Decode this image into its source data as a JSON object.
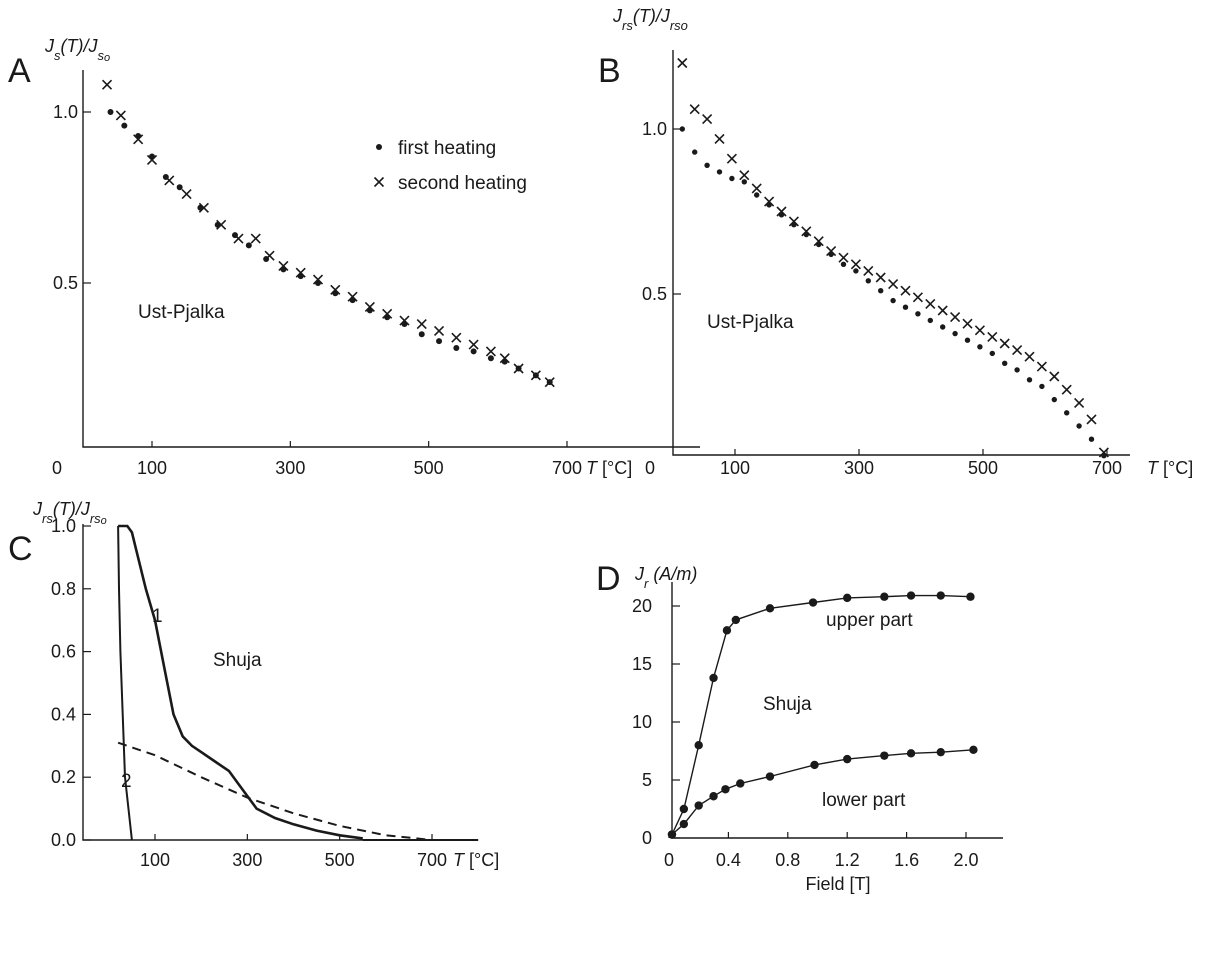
{
  "chart_data": [
    {
      "panel": "A",
      "type": "scatter",
      "ylabel": "J_s(T)/J_so",
      "xlabel": "T [°C]",
      "x_ticks": [
        0,
        100,
        300,
        500,
        700
      ],
      "y_ticks": [
        0.5,
        1.0
      ],
      "xlim": [
        0,
        700
      ],
      "ylim": [
        0,
        1.1
      ],
      "annotations": [
        "Ust-Pjalka"
      ],
      "series": [
        {
          "name": "first heating",
          "marker": "dot",
          "x": [
            40,
            60,
            80,
            100,
            120,
            140,
            170,
            195,
            220,
            240,
            265,
            290,
            315,
            340,
            365,
            390,
            415,
            440,
            465,
            490,
            515,
            540,
            565,
            590,
            610,
            630,
            655,
            675
          ],
          "y": [
            1.0,
            0.96,
            0.93,
            0.87,
            0.81,
            0.78,
            0.72,
            0.67,
            0.64,
            0.61,
            0.57,
            0.54,
            0.52,
            0.5,
            0.47,
            0.45,
            0.42,
            0.4,
            0.38,
            0.35,
            0.33,
            0.31,
            0.3,
            0.28,
            0.27,
            0.25,
            0.23,
            0.21
          ]
        },
        {
          "name": "second heating",
          "marker": "cross",
          "x": [
            35,
            55,
            80,
            100,
            125,
            150,
            175,
            200,
            225,
            250,
            270,
            290,
            315,
            340,
            365,
            390,
            415,
            440,
            465,
            490,
            515,
            540,
            565,
            590,
            610,
            630,
            655,
            675
          ],
          "y": [
            1.08,
            0.99,
            0.92,
            0.86,
            0.8,
            0.76,
            0.72,
            0.67,
            0.63,
            0.63,
            0.58,
            0.55,
            0.53,
            0.51,
            0.48,
            0.46,
            0.43,
            0.41,
            0.39,
            0.38,
            0.36,
            0.34,
            0.32,
            0.3,
            0.28,
            0.25,
            0.23,
            0.21
          ]
        }
      ],
      "legend": [
        "first heating",
        "second heating"
      ]
    },
    {
      "panel": "B",
      "type": "scatter",
      "ylabel": "Jrs(T)/Jrso",
      "xlabel": "T [°C]",
      "x_ticks": [
        0,
        100,
        300,
        500,
        700
      ],
      "y_ticks": [
        0.5,
        1.0
      ],
      "xlim": [
        0,
        700
      ],
      "ylim": [
        0,
        1.2
      ],
      "annotations": [
        "Ust-Pjalka"
      ],
      "series": [
        {
          "name": "first heating",
          "marker": "dot",
          "x": [
            15,
            35,
            55,
            75,
            95,
            115,
            135,
            155,
            175,
            195,
            215,
            235,
            255,
            275,
            295,
            315,
            335,
            355,
            375,
            395,
            415,
            435,
            455,
            475,
            495,
            515,
            535,
            555,
            575,
            595,
            615,
            635,
            655,
            675,
            695
          ],
          "y": [
            1.0,
            0.93,
            0.89,
            0.87,
            0.85,
            0.84,
            0.8,
            0.77,
            0.74,
            0.71,
            0.68,
            0.65,
            0.62,
            0.59,
            0.57,
            0.54,
            0.51,
            0.48,
            0.46,
            0.44,
            0.42,
            0.4,
            0.38,
            0.36,
            0.34,
            0.32,
            0.29,
            0.27,
            0.24,
            0.22,
            0.18,
            0.14,
            0.1,
            0.06,
            0.01
          ]
        },
        {
          "name": "second heating",
          "marker": "cross",
          "x": [
            15,
            35,
            55,
            75,
            95,
            115,
            135,
            155,
            175,
            195,
            215,
            235,
            255,
            275,
            295,
            315,
            335,
            355,
            375,
            395,
            415,
            435,
            455,
            475,
            495,
            515,
            535,
            555,
            575,
            595,
            615,
            635,
            655,
            675,
            695
          ],
          "y": [
            1.2,
            1.06,
            1.03,
            0.97,
            0.91,
            0.86,
            0.82,
            0.78,
            0.75,
            0.72,
            0.69,
            0.66,
            0.63,
            0.61,
            0.59,
            0.57,
            0.55,
            0.53,
            0.51,
            0.49,
            0.47,
            0.45,
            0.43,
            0.41,
            0.39,
            0.37,
            0.35,
            0.33,
            0.31,
            0.28,
            0.25,
            0.21,
            0.17,
            0.12,
            0.02
          ]
        }
      ]
    },
    {
      "panel": "C",
      "type": "line",
      "ylabel": "Jrs(T)/Jrso",
      "xlabel": "T [°C]",
      "x_ticks": [
        100,
        300,
        500,
        700
      ],
      "y_ticks": [
        0.0,
        0.2,
        0.4,
        0.6,
        0.8,
        1.0
      ],
      "xlim": [
        20,
        800
      ],
      "ylim": [
        0,
        1.0
      ],
      "annotations": [
        "Shuja"
      ],
      "series": [
        {
          "name": "1",
          "style": "solid",
          "x": [
            20,
            40,
            50,
            60,
            80,
            100,
            120,
            140,
            160,
            180,
            200,
            230,
            260,
            280,
            300,
            320,
            360,
            400,
            450,
            500,
            550
          ],
          "y": [
            1.0,
            1.0,
            0.98,
            0.92,
            0.8,
            0.7,
            0.55,
            0.4,
            0.33,
            0.3,
            0.28,
            0.25,
            0.22,
            0.18,
            0.14,
            0.1,
            0.07,
            0.05,
            0.03,
            0.015,
            0.005
          ]
        },
        {
          "name": "2",
          "style": "dashed",
          "x": [
            20,
            100,
            200,
            300,
            400,
            500,
            600,
            700
          ],
          "y": [
            0.31,
            0.27,
            0.2,
            0.135,
            0.085,
            0.045,
            0.015,
            0.0
          ]
        },
        {
          "name": "",
          "style": "solid",
          "x": [
            20,
            22,
            25,
            30,
            35,
            50
          ],
          "y": [
            1.0,
            0.8,
            0.6,
            0.4,
            0.2,
            0.0
          ]
        },
        {
          "name": "",
          "style": "solid",
          "x": [
            550,
            800
          ],
          "y": [
            0.0,
            0.0
          ]
        }
      ],
      "labels": [
        "1",
        "2"
      ]
    },
    {
      "panel": "D",
      "type": "line",
      "ylabel": "J_r (A/m)",
      "xlabel": "Field [T]",
      "x_ticks": [
        0,
        0.4,
        0.8,
        1.2,
        1.6,
        2.0
      ],
      "y_ticks": [
        0,
        5,
        10,
        15,
        20
      ],
      "xlim": [
        0,
        2.2
      ],
      "ylim": [
        0,
        22
      ],
      "annotations": [
        "Shuja"
      ],
      "series": [
        {
          "name": "upper part",
          "marker": "dot",
          "x": [
            0.02,
            0.1,
            0.2,
            0.3,
            0.39,
            0.45,
            0.68,
            0.97,
            1.2,
            1.45,
            1.63,
            1.83,
            2.03
          ],
          "y": [
            0.3,
            2.5,
            8.0,
            13.8,
            17.9,
            18.8,
            19.8,
            20.3,
            20.7,
            20.8,
            20.9,
            20.9,
            20.8
          ]
        },
        {
          "name": "lower part",
          "marker": "dot",
          "x": [
            0.02,
            0.1,
            0.2,
            0.3,
            0.38,
            0.48,
            0.68,
            0.98,
            1.2,
            1.45,
            1.63,
            1.83,
            2.05
          ],
          "y": [
            0.3,
            1.2,
            2.8,
            3.6,
            4.2,
            4.7,
            5.3,
            6.3,
            6.8,
            7.1,
            7.3,
            7.4,
            7.6
          ]
        }
      ]
    }
  ]
}
